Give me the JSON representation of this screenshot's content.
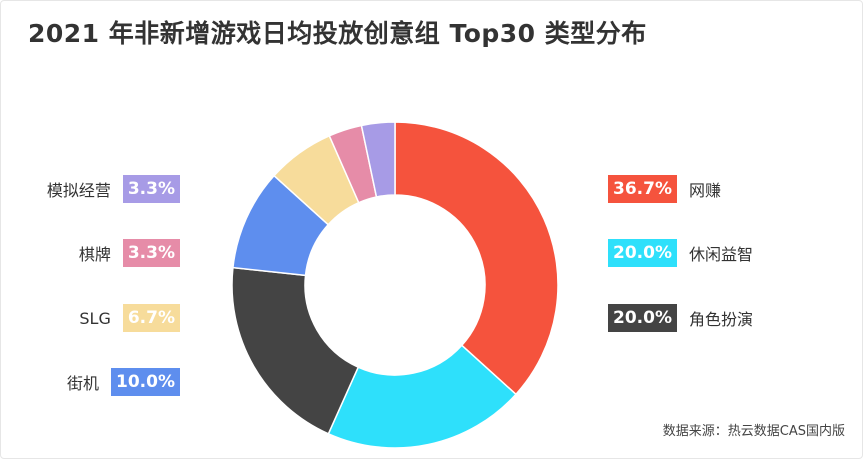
{
  "title": "2021 年非新增游戏日均投放创意组 Top30 类型分布",
  "source": "数据来源：热云数据CAS国内版",
  "chart_data": {
    "type": "pie",
    "variant": "donut",
    "slices": [
      {
        "name": "网赚",
        "value": 36.7,
        "label": "36.7%",
        "color": "#f5533d"
      },
      {
        "name": "休闲益智",
        "value": 20.0,
        "label": "20.0%",
        "color": "#2ee0fb"
      },
      {
        "name": "角色扮演",
        "value": 20.0,
        "label": "20.0%",
        "color": "#444444"
      },
      {
        "name": "街机",
        "value": 10.0,
        "label": "10.0%",
        "color": "#5e8eee"
      },
      {
        "name": "SLG",
        "value": 6.7,
        "label": "6.7%",
        "color": "#f7dc9b"
      },
      {
        "name": "棋牌",
        "value": 3.3,
        "label": "3.3%",
        "color": "#e68ca8"
      },
      {
        "name": "模拟经营",
        "value": 3.3,
        "label": "3.3%",
        "color": "#a79be6"
      }
    ],
    "legend_left": [
      "模拟经营",
      "棋牌",
      "SLG",
      "街机"
    ],
    "legend_right": [
      "网赚",
      "休闲益智",
      "角色扮演"
    ]
  }
}
